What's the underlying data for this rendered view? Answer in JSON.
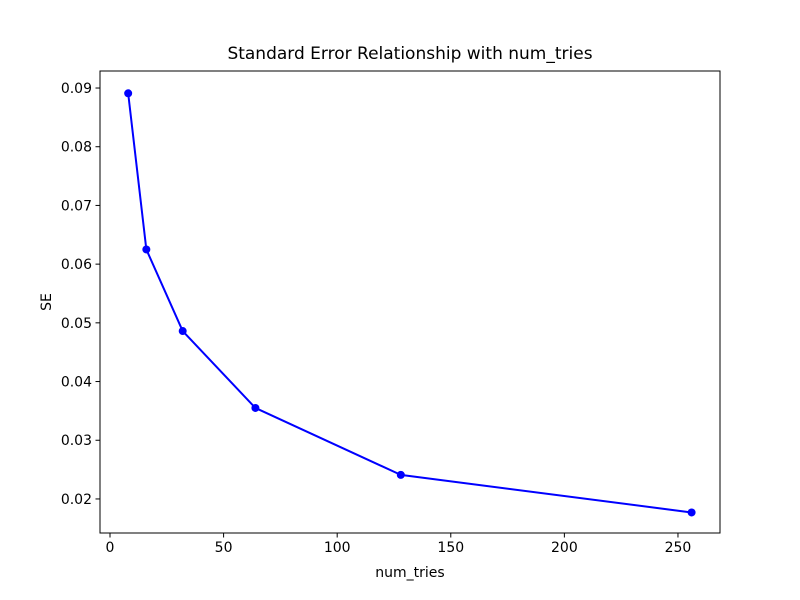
{
  "figure": {
    "background": "#ffffff",
    "spine_color": "#000000",
    "tick_color": "#000000"
  },
  "chart_data": {
    "type": "line",
    "title": "Standard Error Relationship with num_tries",
    "xlabel": "num_tries",
    "ylabel": "SE",
    "x": [
      8,
      16,
      32,
      64,
      128,
      256
    ],
    "y": [
      0.0891,
      0.0625,
      0.0486,
      0.0355,
      0.0241,
      0.0177
    ],
    "line_color": "#0000ff",
    "marker": "circle",
    "marker_color": "#0000ff",
    "x_ticks": [
      0,
      50,
      100,
      150,
      200,
      250
    ],
    "y_ticks": [
      0.02,
      0.03,
      0.04,
      0.05,
      0.06,
      0.07,
      0.08,
      0.09
    ],
    "y_tick_decimals": 2,
    "xlim": [
      -4.4,
      268.5
    ],
    "ylim": [
      0.0142,
      0.0929
    ],
    "grid": false,
    "legend": null
  }
}
